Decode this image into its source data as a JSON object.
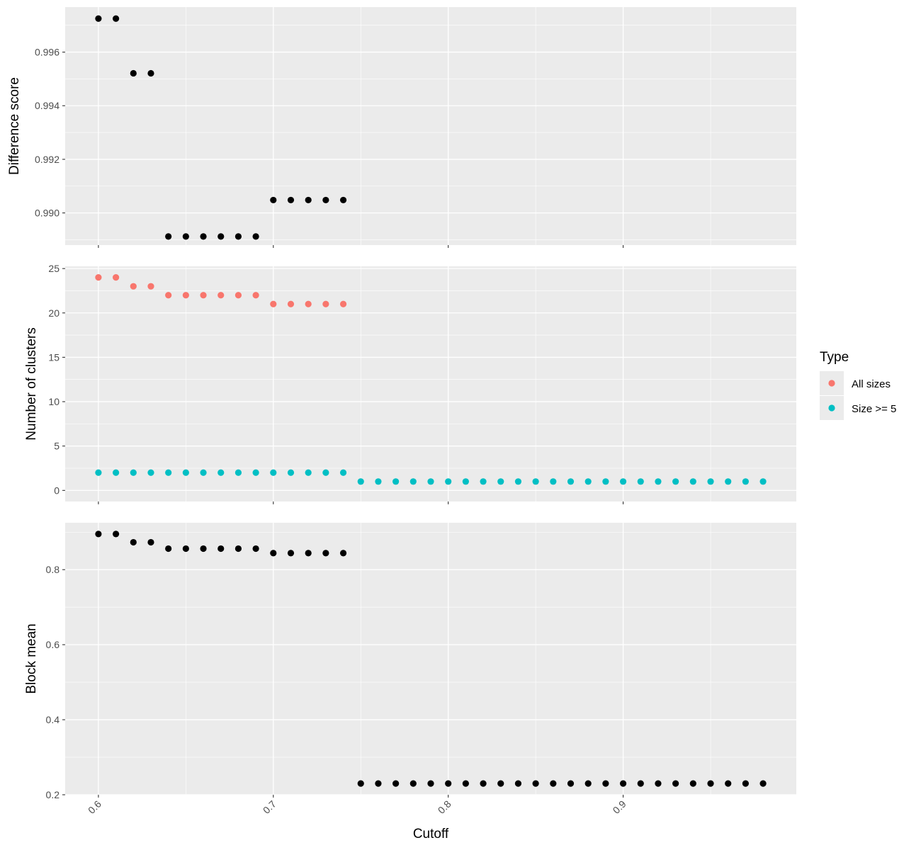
{
  "chart_data": {
    "type": "scatter",
    "xlabel": "Cutoff",
    "x_ticks": [
      "0.6",
      "0.7",
      "0.8",
      "0.9"
    ],
    "x_tick_values": [
      0.6,
      0.7,
      0.8,
      0.9
    ],
    "xlim": [
      0.581,
      0.999
    ],
    "grid": true,
    "colors": {
      "panel_bg": "#EBEBEB",
      "grid": "#FFFFFF",
      "all_sizes": "#F8766D",
      "size_ge_5": "#00BFC4",
      "points": "#000000"
    },
    "legend": {
      "title": "Type",
      "position": "right",
      "entries": [
        {
          "label": "All sizes",
          "color": "#F8766D"
        },
        {
          "label": "Size >= 5",
          "color": "#00BFC4"
        }
      ]
    },
    "panels": [
      {
        "ylabel": "Difference score",
        "ylim": [
          0.9888,
          0.99768
        ],
        "y_ticks": [
          "0.990",
          "0.992",
          "0.994",
          "0.996"
        ],
        "y_tick_values": [
          0.99,
          0.992,
          0.994,
          0.996
        ],
        "series": [
          {
            "color": "#000000",
            "x": [
              0.6,
              0.61,
              0.62,
              0.63,
              0.64,
              0.65,
              0.66,
              0.67,
              0.68,
              0.69,
              0.7,
              0.71,
              0.72,
              0.73,
              0.74
            ],
            "y": [
              0.99725,
              0.99725,
              0.99521,
              0.99521,
              0.98912,
              0.98912,
              0.98912,
              0.98912,
              0.98912,
              0.98912,
              0.99048,
              0.99048,
              0.99048,
              0.99048,
              0.99048
            ]
          }
        ]
      },
      {
        "ylabel": "Number of clusters",
        "ylim": [
          -1.25,
          25.25
        ],
        "y_ticks": [
          "0",
          "5",
          "10",
          "15",
          "20",
          "25"
        ],
        "y_tick_values": [
          0,
          5,
          10,
          15,
          20,
          25
        ],
        "series": [
          {
            "name": "All sizes",
            "color": "#F8766D",
            "x": [
              0.6,
              0.61,
              0.62,
              0.63,
              0.64,
              0.65,
              0.66,
              0.67,
              0.68,
              0.69,
              0.7,
              0.71,
              0.72,
              0.73,
              0.74
            ],
            "y": [
              24,
              24,
              23,
              23,
              22,
              22,
              22,
              22,
              22,
              22,
              21,
              21,
              21,
              21,
              21
            ]
          },
          {
            "name": "Size >= 5",
            "color": "#00BFC4",
            "x": [
              0.6,
              0.61,
              0.62,
              0.63,
              0.64,
              0.65,
              0.66,
              0.67,
              0.68,
              0.69,
              0.7,
              0.71,
              0.72,
              0.73,
              0.74,
              0.75,
              0.76,
              0.77,
              0.78,
              0.79,
              0.8,
              0.81,
              0.82,
              0.83,
              0.84,
              0.85,
              0.86,
              0.87,
              0.88,
              0.89,
              0.9,
              0.91,
              0.92,
              0.93,
              0.94,
              0.95,
              0.96,
              0.97,
              0.98
            ],
            "y": [
              2,
              2,
              2,
              2,
              2,
              2,
              2,
              2,
              2,
              2,
              2,
              2,
              2,
              2,
              2,
              1,
              1,
              1,
              1,
              1,
              1,
              1,
              1,
              1,
              1,
              1,
              1,
              1,
              1,
              1,
              1,
              1,
              1,
              1,
              1,
              1,
              1,
              1,
              1
            ]
          }
        ]
      },
      {
        "ylabel": "Block mean",
        "ylim": [
          0.2,
          0.925
        ],
        "y_ticks": [
          "0.2",
          "0.4",
          "0.6",
          "0.8"
        ],
        "y_tick_values": [
          0.2,
          0.4,
          0.6,
          0.8
        ],
        "series": [
          {
            "color": "#000000",
            "x": [
              0.6,
              0.61,
              0.62,
              0.63,
              0.64,
              0.65,
              0.66,
              0.67,
              0.68,
              0.69,
              0.7,
              0.71,
              0.72,
              0.73,
              0.74,
              0.75,
              0.76,
              0.77,
              0.78,
              0.79,
              0.8,
              0.81,
              0.82,
              0.83,
              0.84,
              0.85,
              0.86,
              0.87,
              0.88,
              0.89,
              0.9,
              0.91,
              0.92,
              0.93,
              0.94,
              0.95,
              0.96,
              0.97,
              0.98
            ],
            "y": [
              0.895,
              0.895,
              0.873,
              0.873,
              0.856,
              0.856,
              0.856,
              0.856,
              0.856,
              0.856,
              0.844,
              0.844,
              0.844,
              0.844,
              0.844,
              0.23,
              0.23,
              0.23,
              0.23,
              0.23,
              0.23,
              0.23,
              0.23,
              0.23,
              0.23,
              0.23,
              0.23,
              0.23,
              0.23,
              0.23,
              0.23,
              0.23,
              0.23,
              0.23,
              0.23,
              0.23,
              0.23,
              0.23,
              0.23
            ]
          }
        ]
      }
    ]
  }
}
